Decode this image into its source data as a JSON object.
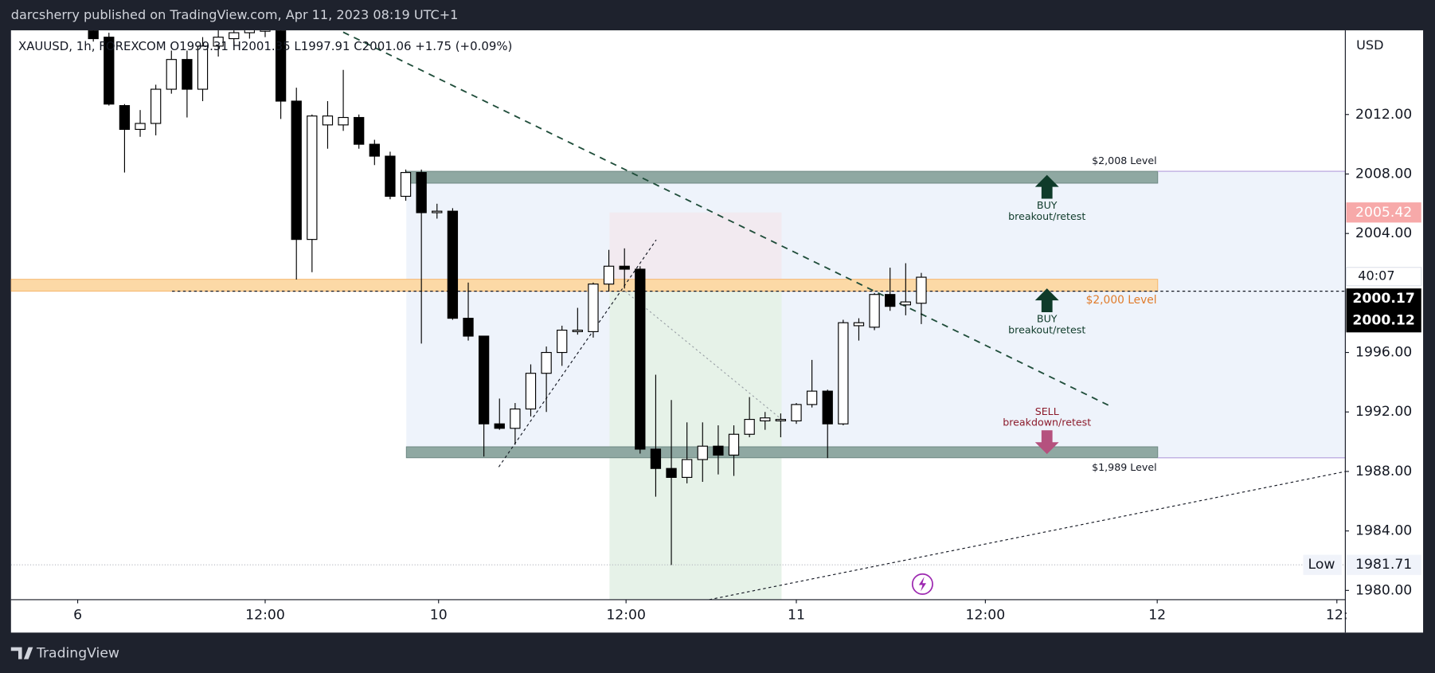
{
  "header": {
    "published": "darcsherry published on TradingView.com, Apr 11, 2023 08:19 UTC+1",
    "brand": "TradingView"
  },
  "chart_data": {
    "type": "candlestick",
    "legend_text": "XAUUSD, 1h, FOREXCOM  O1999.31  H2001.35  L1997.91  C2001.06  +1.75 (+0.09%)",
    "y_axis_unit": "USD",
    "open": [
      2017.9,
      2017.2,
      2012.6,
      2011.0,
      2011.4,
      2013.7,
      2015.7,
      2013.7,
      2016.6,
      2017.1,
      2017.5,
      2017.6,
      2017.85,
      2012.9,
      2003.6,
      2011.3,
      2011.3,
      2011.8,
      2010.0,
      2009.2,
      2006.5,
      2008.1,
      2005.4,
      2005.5,
      1998.3,
      1997.1,
      1991.2,
      1990.9,
      1992.2,
      1994.6,
      1996.0,
      1997.4,
      1997.4,
      2000.6,
      2001.8,
      2001.6,
      1989.5,
      1988.2,
      1987.6,
      1988.8,
      1989.7,
      1989.1,
      1990.5,
      1991.4,
      1991.4,
      1991.4,
      1992.5,
      1993.4,
      1991.2,
      1997.8,
      1997.7,
      1999.9,
      1999.2,
      1999.31
    ],
    "high": [
      2018.3,
      2017.5,
      2012.7,
      2012.3,
      2014.0,
      2016.3,
      2016.3,
      2017.2,
      2017.8,
      2017.9,
      2018.2,
      2018.3,
      2018.3,
      2013.8,
      2012.0,
      2012.9,
      2015.0,
      2012.0,
      2010.3,
      2009.5,
      2008.3,
      2008.3,
      2006.0,
      2005.7,
      2000.7,
      1997.1,
      1992.9,
      1992.6,
      1995.2,
      1996.4,
      1997.8,
      1999.0,
      2000.7,
      2002.9,
      2003.0,
      2001.8,
      1994.5,
      1992.8,
      1991.3,
      1991.3,
      1991.1,
      1991.1,
      1993.0,
      1992.0,
      1991.9,
      1992.6,
      1995.5,
      1993.5,
      1998.2,
      1998.3,
      2000.0,
      2001.7,
      2002.0,
      2001.35
    ],
    "low": [
      2016.9,
      2012.6,
      2008.1,
      2010.5,
      2010.6,
      2013.4,
      2011.8,
      2012.9,
      2015.9,
      2016.6,
      2017.1,
      2017.2,
      2011.7,
      2000.9,
      2001.4,
      2009.7,
      2010.9,
      2009.7,
      2008.6,
      2006.3,
      2006.2,
      1996.6,
      2005.0,
      1998.2,
      1996.8,
      1989.0,
      1990.8,
      1989.8,
      1991.7,
      1992.0,
      1995.1,
      1997.2,
      1997.0,
      2000.1,
      2000.3,
      1989.2,
      1986.3,
      1981.71,
      1987.2,
      1987.3,
      1987.8,
      1987.7,
      1990.3,
      1990.8,
      1990.3,
      1991.2,
      1992.3,
      1988.9,
      1991.1,
      1996.8,
      1997.5,
      1998.8,
      1998.5,
      1997.91
    ],
    "close": [
      2017.1,
      2012.7,
      2011.0,
      2011.4,
      2013.7,
      2015.7,
      2013.7,
      2016.6,
      2017.2,
      2017.5,
      2017.8,
      2017.9,
      2012.9,
      2003.6,
      2011.9,
      2011.9,
      2011.8,
      2010.0,
      2009.2,
      2006.5,
      2008.1,
      2005.4,
      2005.5,
      1998.3,
      1997.1,
      1991.2,
      1990.9,
      1992.2,
      1994.6,
      1996.0,
      1997.5,
      1997.5,
      2000.6,
      2001.8,
      2001.6,
      1989.5,
      1988.2,
      1987.6,
      1988.8,
      1989.7,
      1989.1,
      1990.5,
      1991.5,
      1991.6,
      1991.5,
      1992.5,
      1993.4,
      1991.2,
      1998.0,
      1998.0,
      1999.9,
      1999.1,
      1999.4,
      2001.06
    ],
    "xlim": [
      -5.27,
      80.14
    ],
    "xticks": [
      {
        "value": -1,
        "label": "6"
      },
      {
        "value": 11,
        "label": "12:00"
      },
      {
        "value": 22.1,
        "label": "10"
      },
      {
        "value": 34.1,
        "label": "12:00"
      },
      {
        "value": 45,
        "label": "11"
      },
      {
        "value": 57.1,
        "label": "12:00"
      },
      {
        "value": 68.1,
        "label": "12"
      },
      {
        "value": 79.6,
        "label": "12:"
      }
    ],
    "ylim": [
      1979.38,
      2017.66
    ],
    "yticks": [
      {
        "value": 2012,
        "label": "2012.00"
      },
      {
        "value": 2008,
        "label": "2008.00"
      },
      {
        "value": 2004,
        "label": "2004.00"
      },
      {
        "value": 1996,
        "label": "1996.00"
      },
      {
        "value": 1992,
        "label": "1992.00"
      },
      {
        "value": 1988,
        "label": "1988.00"
      },
      {
        "value": 1984,
        "label": "1984.00"
      },
      {
        "value": 1980,
        "label": "1980.00"
      }
    ],
    "annotations": {
      "level_top": "$2,008 Level",
      "level_mid": "$2,000 Level",
      "level_bottom": "$1,989 Level",
      "buy_1": "BUY",
      "buy_1_sub": "breakout/retest",
      "buy_2": "BUY",
      "buy_2_sub": "breakout/retest",
      "sell": "SELL",
      "sell_sub": "breakdown/retest"
    },
    "price_tags": {
      "alert": "2005.42",
      "countdown": "40:07",
      "last": "2000.17",
      "prev": "2000.12",
      "low_label": "Low",
      "low": "1981.71"
    }
  }
}
